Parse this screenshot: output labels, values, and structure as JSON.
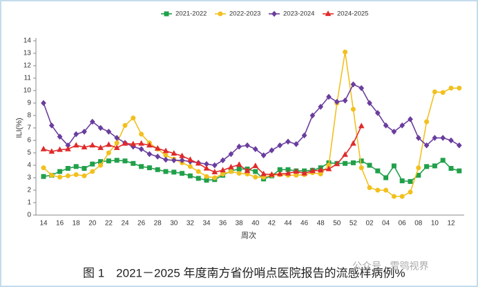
{
  "chart_data": {
    "type": "line",
    "ylabel": "ILI(%)",
    "xlabel": "周次",
    "caption": "图 1　2021－2025 年度南方省份哨点医院报告的流感样病例%",
    "watermark": "公众号 · 雪鸮视界",
    "legend": "top",
    "categories": [
      "14",
      null,
      "16",
      null,
      "18",
      null,
      "20",
      null,
      "22",
      null,
      "24",
      null,
      "26",
      null,
      "28",
      null,
      "30",
      null,
      "32",
      null,
      "34",
      null,
      "36",
      null,
      "38",
      null,
      "40",
      null,
      "42",
      null,
      "44",
      null,
      "46",
      null,
      "48",
      null,
      "50",
      null,
      "52",
      null,
      "02",
      null,
      "04",
      null,
      "06",
      null,
      "08",
      null,
      "10",
      null,
      "12",
      null
    ],
    "ylim": [
      0,
      14
    ],
    "yticks": [
      0,
      1,
      2,
      3,
      4,
      5,
      6,
      7,
      8,
      9,
      10,
      11,
      12,
      13,
      14
    ],
    "series": [
      {
        "name": "2021-2022",
        "color": "#21a04a",
        "marker": "square",
        "values": [
          3.1,
          3.2,
          3.5,
          3.75,
          3.9,
          3.75,
          4.1,
          4.3,
          4.35,
          4.4,
          4.35,
          4.15,
          3.9,
          3.8,
          3.65,
          3.5,
          3.45,
          3.35,
          3.15,
          2.95,
          2.8,
          2.85,
          3.2,
          3.55,
          3.7,
          3.7,
          3.5,
          2.9,
          3.15,
          3.65,
          3.65,
          3.55,
          3.55,
          3.6,
          3.8,
          4.2,
          4.15,
          4.15,
          4.2,
          4.35,
          4.0,
          3.55,
          3.0,
          3.95,
          2.75,
          2.7,
          3.2,
          3.9,
          3.95,
          4.4,
          3.75,
          3.55
        ]
      },
      {
        "name": "2022-2023",
        "color": "#f2c01e",
        "marker": "circle",
        "values": [
          3.8,
          3.2,
          3.05,
          3.15,
          3.25,
          3.15,
          3.5,
          4.0,
          5.0,
          5.8,
          7.2,
          7.8,
          6.5,
          5.8,
          5.3,
          4.8,
          4.5,
          4.2,
          3.9,
          3.5,
          3.1,
          3.0,
          3.3,
          3.5,
          3.35,
          3.3,
          3.05,
          3.05,
          3.2,
          3.25,
          3.2,
          3.2,
          3.25,
          3.4,
          3.3,
          4.0,
          9.0,
          13.1,
          8.5,
          3.8,
          2.2,
          2.0,
          2.0,
          1.5,
          1.5,
          1.85,
          3.8,
          7.5,
          9.9,
          9.85,
          10.2,
          10.2
        ]
      },
      {
        "name": "2023-2024",
        "color": "#6a3d9e",
        "marker": "diamond",
        "values": [
          9.0,
          7.2,
          6.3,
          5.6,
          6.5,
          6.7,
          7.5,
          7.0,
          6.7,
          6.2,
          5.8,
          5.5,
          5.3,
          4.9,
          4.7,
          4.45,
          4.4,
          4.4,
          4.3,
          4.2,
          4.1,
          4.0,
          4.4,
          4.9,
          5.5,
          5.6,
          5.3,
          4.8,
          5.2,
          5.6,
          5.9,
          5.7,
          6.4,
          8.0,
          8.7,
          9.5,
          9.1,
          9.2,
          10.5,
          10.2,
          9.0,
          8.2,
          7.2,
          6.7,
          7.2,
          7.7,
          6.2,
          5.6,
          6.2,
          6.2,
          6.0,
          5.6
        ]
      },
      {
        "name": "2024-2025",
        "color": "#e02a2a",
        "marker": "triangle",
        "values": [
          5.3,
          5.1,
          5.25,
          5.3,
          5.6,
          5.45,
          5.6,
          5.4,
          5.65,
          5.4,
          5.75,
          5.7,
          5.75,
          5.6,
          5.35,
          5.15,
          4.95,
          4.75,
          4.45,
          4.15,
          3.75,
          3.45,
          3.6,
          3.85,
          4.05,
          3.55,
          3.95,
          3.3,
          3.25,
          3.3,
          3.35,
          3.5,
          3.35,
          3.55,
          3.6,
          3.7,
          4.1,
          4.85,
          5.75,
          7.15,
          null,
          null,
          null,
          null,
          null,
          null,
          null,
          null,
          null,
          null,
          null,
          null
        ]
      }
    ]
  }
}
